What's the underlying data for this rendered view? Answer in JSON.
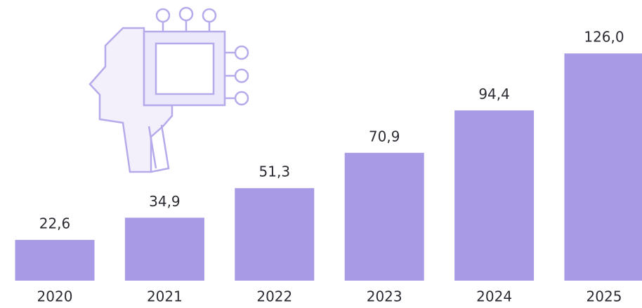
{
  "chart_data": {
    "type": "bar",
    "categories": [
      "2020",
      "2021",
      "2022",
      "2023",
      "2024",
      "2025"
    ],
    "values": [
      22.6,
      34.9,
      51.3,
      70.9,
      94.4,
      126.0
    ],
    "value_labels": [
      "22,6",
      "34,9",
      "51,3",
      "70,9",
      "94,4",
      "126,0"
    ],
    "color": "#a99ae6"
  }
}
